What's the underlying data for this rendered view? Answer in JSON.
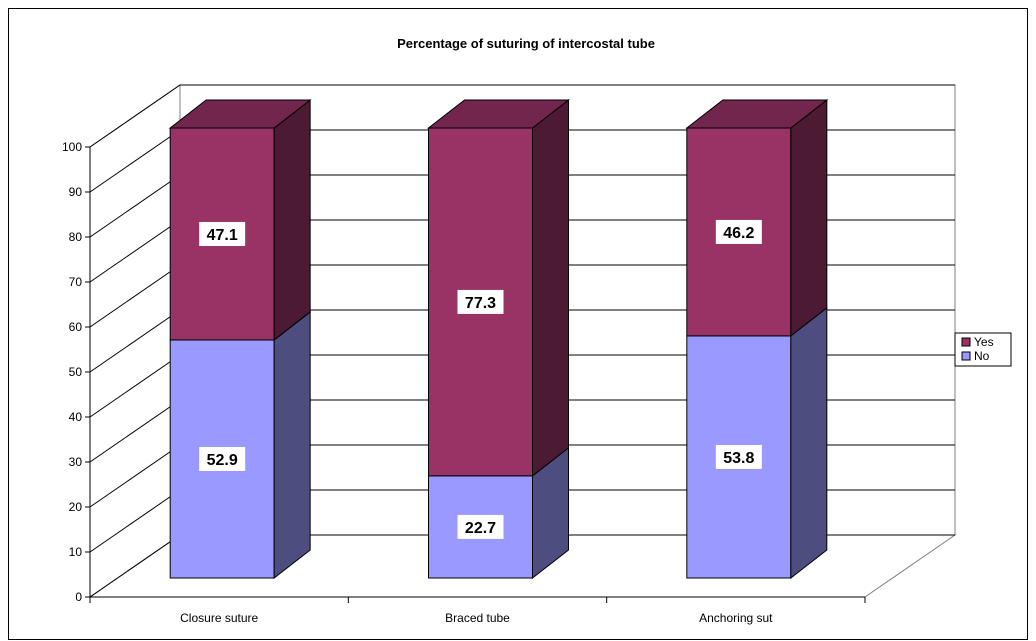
{
  "chart_data": {
    "type": "bar",
    "stacked": true,
    "three_d": true,
    "title": "Percentage of suturing of intercostal tube",
    "xlabel": "",
    "ylabel": "",
    "ylim": [
      0,
      100
    ],
    "yticks": [
      0,
      10,
      20,
      30,
      40,
      50,
      60,
      70,
      80,
      90,
      100
    ],
    "grid": true,
    "legend_position": "right",
    "categories": [
      "Closure suture",
      "Braced tube",
      "Anchoring sut"
    ],
    "series": [
      {
        "name": "No",
        "values": [
          52.9,
          22.7,
          53.8
        ],
        "color": "#9999ff",
        "side_color": "#4d4d80",
        "top_color": "#b3b3ff"
      },
      {
        "name": "Yes",
        "values": [
          47.1,
          77.3,
          46.2
        ],
        "color": "#993366",
        "side_color": "#4d1a33",
        "top_color": "#73264d"
      }
    ],
    "data_labels": [
      [
        "52.9",
        "22.7",
        "53.8"
      ],
      [
        "47.1",
        "77.3",
        "46.2"
      ]
    ],
    "legend_order": [
      "Yes",
      "No"
    ]
  }
}
